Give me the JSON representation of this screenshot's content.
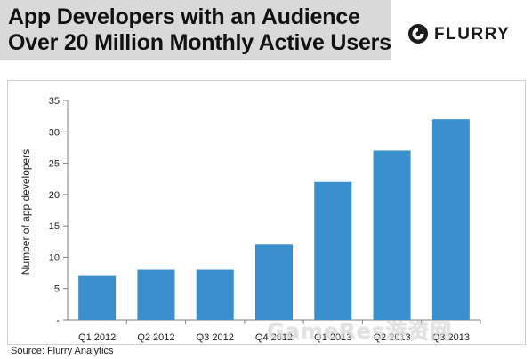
{
  "header": {
    "title_line1": "App Developers with an Audience",
    "title_line2": "Over 20 Million Monthly Active Users"
  },
  "logo": {
    "text": "FLURRY",
    "icon": "flurry-logo-icon"
  },
  "source": "Source: Flurry Analytics",
  "watermark": "GameRes游资网",
  "colors": {
    "bar": "#3a8fcd",
    "header_bg": "#d9d9d9",
    "axis": "#808080"
  },
  "chart_data": {
    "type": "bar",
    "title": "App Developers with an Audience Over 20 Million Monthly Active Users",
    "categories": [
      "Q1 2012",
      "Q2 2012",
      "Q3 2012",
      "Q4 2012",
      "Q1 2013",
      "Q2 2013",
      "Q3 2013"
    ],
    "values": [
      7,
      8,
      8,
      12,
      22,
      27,
      32
    ],
    "ylabel": "Number of app developers",
    "xlabel": "",
    "ylim": [
      0,
      35
    ],
    "yticks": [
      0,
      5,
      10,
      15,
      20,
      25,
      30,
      35
    ],
    "ytick_labels": [
      "-",
      "5",
      "10",
      "15",
      "20",
      "25",
      "30",
      "35"
    ],
    "grid": false,
    "legend": "none"
  }
}
